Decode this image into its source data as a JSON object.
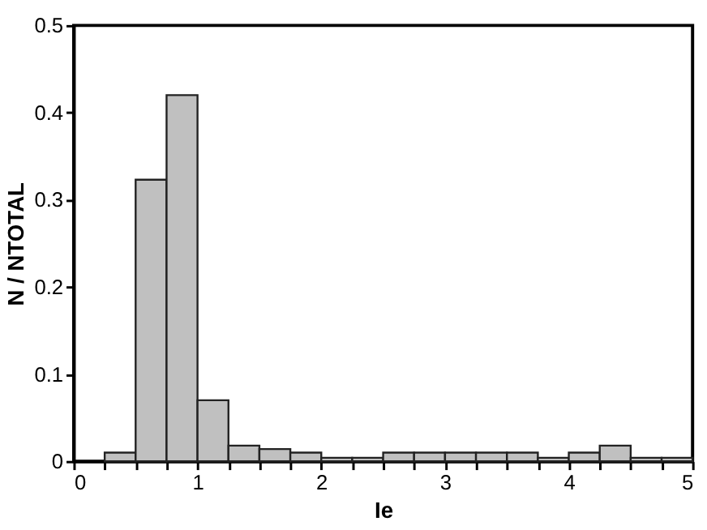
{
  "chart_data": {
    "type": "histogram",
    "xlabel": "Ie",
    "ylabel": "N / NTOTAL",
    "bins": [
      0,
      0.25,
      0.5,
      0.75,
      1,
      1.25,
      1.5,
      1.75,
      2,
      2.25,
      2.5,
      2.75,
      3,
      3.25,
      3.5,
      3.75,
      4,
      4.25,
      4.5,
      4.75,
      5
    ],
    "values": [
      0,
      0.01,
      0.323,
      0.42,
      0.07,
      0.018,
      0.014,
      0.01,
      0.004,
      0.004,
      0.01,
      0.01,
      0.01,
      0.01,
      0.01,
      0.004,
      0.01,
      0.018,
      0.004,
      0.004
    ],
    "color": "#c0c0c0",
    "xlim": [
      0,
      5
    ],
    "ylim": [
      0,
      0.5
    ],
    "xticks": [
      0,
      {
        "value": 0.25,
        "label": null
      },
      {
        "value": 0.5,
        "label": null
      },
      {
        "value": 0.75,
        "label": null
      },
      1,
      {
        "value": 1.25,
        "label": null
      },
      {
        "value": 1.5,
        "label": null
      },
      {
        "value": 1.75,
        "label": null
      },
      2,
      {
        "value": 2.25,
        "label": null
      },
      {
        "value": 2.5,
        "label": null
      },
      {
        "value": 2.75,
        "label": null
      },
      3,
      {
        "value": 3.25,
        "label": null
      },
      {
        "value": 3.5,
        "label": null
      },
      {
        "value": 3.75,
        "label": null
      },
      4,
      {
        "value": 4.25,
        "label": null
      },
      {
        "value": 4.5,
        "label": null
      },
      {
        "value": 4.75,
        "label": null
      },
      5
    ],
    "yticks": [
      0,
      0.1,
      0.2,
      0.3,
      0.4,
      0.5
    ],
    "grid": false
  }
}
